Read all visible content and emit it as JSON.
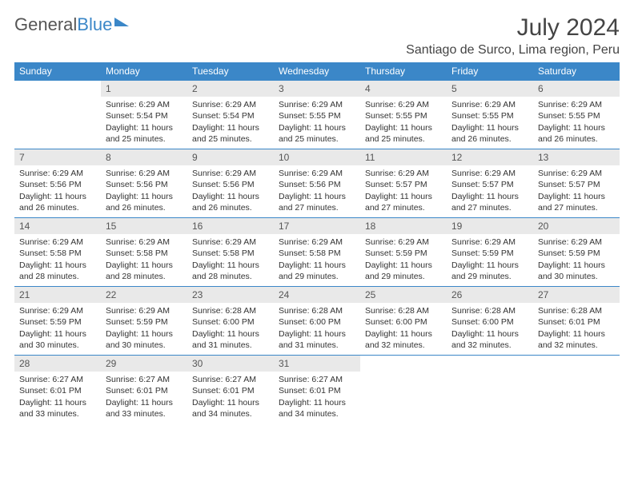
{
  "logo": {
    "part1": "General",
    "part2": "Blue"
  },
  "title": "July 2024",
  "location": "Santiago de Surco, Lima region, Peru",
  "colors": {
    "header_bg": "#3b87c8",
    "header_text": "#ffffff",
    "daynum_bg": "#e9e9e9",
    "row_border": "#3b87c8",
    "body_text": "#333333"
  },
  "weekday_headers": [
    "Sunday",
    "Monday",
    "Tuesday",
    "Wednesday",
    "Thursday",
    "Friday",
    "Saturday"
  ],
  "weeks": [
    [
      {
        "empty": true
      },
      {
        "day": "1",
        "sunrise": "6:29 AM",
        "sunset": "5:54 PM",
        "daylight": "11 hours and 25 minutes."
      },
      {
        "day": "2",
        "sunrise": "6:29 AM",
        "sunset": "5:54 PM",
        "daylight": "11 hours and 25 minutes."
      },
      {
        "day": "3",
        "sunrise": "6:29 AM",
        "sunset": "5:55 PM",
        "daylight": "11 hours and 25 minutes."
      },
      {
        "day": "4",
        "sunrise": "6:29 AM",
        "sunset": "5:55 PM",
        "daylight": "11 hours and 25 minutes."
      },
      {
        "day": "5",
        "sunrise": "6:29 AM",
        "sunset": "5:55 PM",
        "daylight": "11 hours and 26 minutes."
      },
      {
        "day": "6",
        "sunrise": "6:29 AM",
        "sunset": "5:55 PM",
        "daylight": "11 hours and 26 minutes."
      }
    ],
    [
      {
        "day": "7",
        "sunrise": "6:29 AM",
        "sunset": "5:56 PM",
        "daylight": "11 hours and 26 minutes."
      },
      {
        "day": "8",
        "sunrise": "6:29 AM",
        "sunset": "5:56 PM",
        "daylight": "11 hours and 26 minutes."
      },
      {
        "day": "9",
        "sunrise": "6:29 AM",
        "sunset": "5:56 PM",
        "daylight": "11 hours and 26 minutes."
      },
      {
        "day": "10",
        "sunrise": "6:29 AM",
        "sunset": "5:56 PM",
        "daylight": "11 hours and 27 minutes."
      },
      {
        "day": "11",
        "sunrise": "6:29 AM",
        "sunset": "5:57 PM",
        "daylight": "11 hours and 27 minutes."
      },
      {
        "day": "12",
        "sunrise": "6:29 AM",
        "sunset": "5:57 PM",
        "daylight": "11 hours and 27 minutes."
      },
      {
        "day": "13",
        "sunrise": "6:29 AM",
        "sunset": "5:57 PM",
        "daylight": "11 hours and 27 minutes."
      }
    ],
    [
      {
        "day": "14",
        "sunrise": "6:29 AM",
        "sunset": "5:58 PM",
        "daylight": "11 hours and 28 minutes."
      },
      {
        "day": "15",
        "sunrise": "6:29 AM",
        "sunset": "5:58 PM",
        "daylight": "11 hours and 28 minutes."
      },
      {
        "day": "16",
        "sunrise": "6:29 AM",
        "sunset": "5:58 PM",
        "daylight": "11 hours and 28 minutes."
      },
      {
        "day": "17",
        "sunrise": "6:29 AM",
        "sunset": "5:58 PM",
        "daylight": "11 hours and 29 minutes."
      },
      {
        "day": "18",
        "sunrise": "6:29 AM",
        "sunset": "5:59 PM",
        "daylight": "11 hours and 29 minutes."
      },
      {
        "day": "19",
        "sunrise": "6:29 AM",
        "sunset": "5:59 PM",
        "daylight": "11 hours and 29 minutes."
      },
      {
        "day": "20",
        "sunrise": "6:29 AM",
        "sunset": "5:59 PM",
        "daylight": "11 hours and 30 minutes."
      }
    ],
    [
      {
        "day": "21",
        "sunrise": "6:29 AM",
        "sunset": "5:59 PM",
        "daylight": "11 hours and 30 minutes."
      },
      {
        "day": "22",
        "sunrise": "6:29 AM",
        "sunset": "5:59 PM",
        "daylight": "11 hours and 30 minutes."
      },
      {
        "day": "23",
        "sunrise": "6:28 AM",
        "sunset": "6:00 PM",
        "daylight": "11 hours and 31 minutes."
      },
      {
        "day": "24",
        "sunrise": "6:28 AM",
        "sunset": "6:00 PM",
        "daylight": "11 hours and 31 minutes."
      },
      {
        "day": "25",
        "sunrise": "6:28 AM",
        "sunset": "6:00 PM",
        "daylight": "11 hours and 32 minutes."
      },
      {
        "day": "26",
        "sunrise": "6:28 AM",
        "sunset": "6:00 PM",
        "daylight": "11 hours and 32 minutes."
      },
      {
        "day": "27",
        "sunrise": "6:28 AM",
        "sunset": "6:01 PM",
        "daylight": "11 hours and 32 minutes."
      }
    ],
    [
      {
        "day": "28",
        "sunrise": "6:27 AM",
        "sunset": "6:01 PM",
        "daylight": "11 hours and 33 minutes."
      },
      {
        "day": "29",
        "sunrise": "6:27 AM",
        "sunset": "6:01 PM",
        "daylight": "11 hours and 33 minutes."
      },
      {
        "day": "30",
        "sunrise": "6:27 AM",
        "sunset": "6:01 PM",
        "daylight": "11 hours and 34 minutes."
      },
      {
        "day": "31",
        "sunrise": "6:27 AM",
        "sunset": "6:01 PM",
        "daylight": "11 hours and 34 minutes."
      },
      {
        "empty": true
      },
      {
        "empty": true
      },
      {
        "empty": true
      }
    ]
  ],
  "labels": {
    "sunrise": "Sunrise:",
    "sunset": "Sunset:",
    "daylight": "Daylight:"
  }
}
